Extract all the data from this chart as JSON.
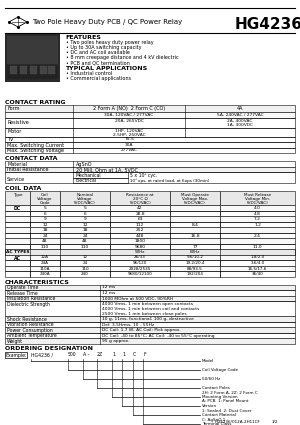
{
  "title": "HG4236",
  "subtitle": "Two Pole Heavy Duty PCB / QC Power Relay",
  "features_title": "FEATURES",
  "features": [
    "Two poles heavy duty power relay",
    "Up to 30A switching capacity",
    "DC and AC coil available",
    "8 mm creepage distance and 4 kV dielectric",
    "PCB and QC termination"
  ],
  "typical_title": "TYPICAL APPLICATIONS",
  "typical": [
    "Industrial control",
    "Commercial applications"
  ],
  "contact_rating_title": "CONTACT RATING",
  "contact_data_title": "CONTACT DATA",
  "coil_data_title": "COIL DATA",
  "characteristics_title": "CHARACTERISTICS",
  "ordering_title": "ORDERING DESIGNATION",
  "background": "#ffffff"
}
